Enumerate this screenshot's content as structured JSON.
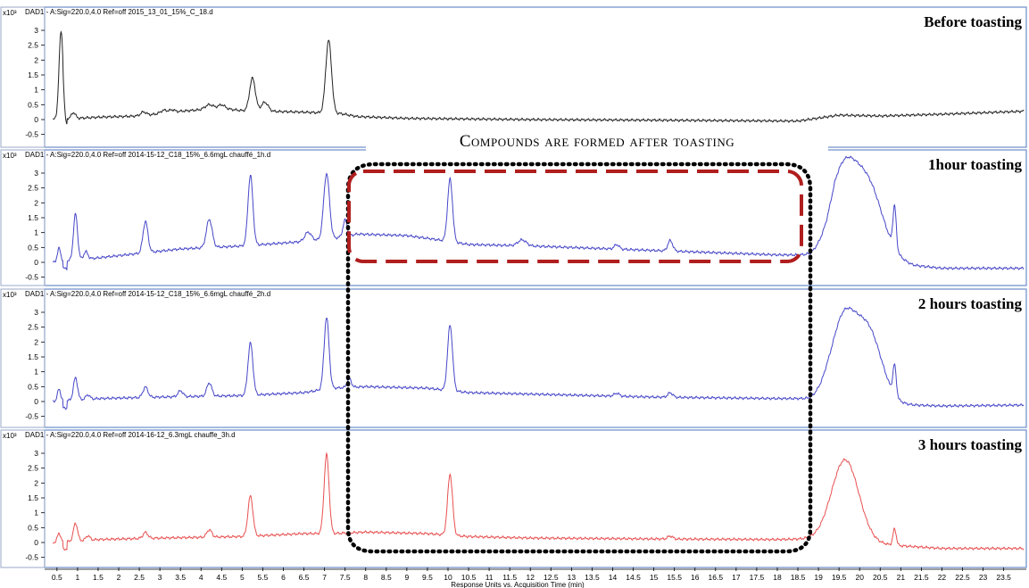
{
  "chart_data": {
    "type": "line",
    "xlabel": "Response Units vs. Acquisition Time (min)",
    "ylabel_unit": "x10³",
    "xlim": [
      0,
      24
    ],
    "ylim": [
      -0.6,
      3.4
    ],
    "xticks": [
      "0.5",
      "1",
      "1.5",
      "2",
      "2.5",
      "3",
      "3.5",
      "4",
      "4.5",
      "5",
      "5.5",
      "6",
      "6.5",
      "7",
      "7.5",
      "8",
      "8.5",
      "9",
      "9.5",
      "10",
      "10.5",
      "11",
      "11.5",
      "12",
      "12.5",
      "13",
      "13.5",
      "14",
      "14.5",
      "15",
      "15.5",
      "16",
      "16.5",
      "17",
      "17.5",
      "18",
      "18.5",
      "19",
      "19.5",
      "20",
      "20.5",
      "21",
      "21.5",
      "22",
      "22.5",
      "23",
      "23.5"
    ],
    "yticks": [
      "3",
      "2.5",
      "2",
      "1.5",
      "1",
      "0.5",
      "0",
      "-0.5"
    ],
    "annotation": "Compounds are formed after toasting",
    "series": [
      {
        "name": "Before toasting",
        "header": "DAD1 - A:Sig=220.0,4.0 Ref=off 2015_13_01_15%_C_18.d",
        "color": "#222222",
        "baseline": [
          [
            0.4,
            0
          ],
          [
            1.5,
            0.08
          ],
          [
            2.5,
            0.12
          ],
          [
            3.5,
            0.28
          ],
          [
            4.5,
            0.38
          ],
          [
            5,
            0.3
          ],
          [
            5.6,
            0.28
          ],
          [
            6.5,
            0.25
          ],
          [
            7.4,
            0.2
          ],
          [
            7.8,
            0.1
          ],
          [
            9,
            0.04
          ],
          [
            12,
            0.0
          ],
          [
            15,
            -0.02
          ],
          [
            18.5,
            -0.05
          ],
          [
            19,
            0.05
          ],
          [
            19.5,
            0.15
          ],
          [
            20.5,
            0.12
          ],
          [
            22,
            0.18
          ],
          [
            24,
            0.28
          ]
        ],
        "peaks": [
          [
            0.6,
            2.95,
            0.05
          ],
          [
            0.9,
            0.2,
            0.05
          ],
          [
            2.6,
            0.12,
            0.07
          ],
          [
            3.1,
            0.1,
            0.08
          ],
          [
            3.3,
            0.08,
            0.06
          ],
          [
            4.2,
            0.15,
            0.1
          ],
          [
            4.5,
            0.12,
            0.08
          ],
          [
            5.25,
            1.1,
            0.07
          ],
          [
            5.55,
            0.3,
            0.08
          ],
          [
            7.1,
            2.45,
            0.07
          ]
        ]
      },
      {
        "name": "1hour toasting",
        "header": "DAD1 - A:Sig=220.0,4.0 Ref=off 2014-15-12_C18_15%_6.6mgL chauffé_1h.d",
        "color": "#4747c8",
        "baseline": [
          [
            0.4,
            0
          ],
          [
            1.5,
            0.15
          ],
          [
            2.5,
            0.3
          ],
          [
            3.5,
            0.45
          ],
          [
            5,
            0.55
          ],
          [
            6.5,
            0.7
          ],
          [
            7.2,
            0.8
          ],
          [
            7.8,
            0.95
          ],
          [
            9,
            0.9
          ],
          [
            9.8,
            0.75
          ],
          [
            10.5,
            0.6
          ],
          [
            12,
            0.55
          ],
          [
            14,
            0.45
          ],
          [
            16,
            0.35
          ],
          [
            18,
            0.25
          ],
          [
            18.8,
            0.25
          ],
          [
            19.2,
            0.5
          ],
          [
            19.4,
            0.8
          ],
          [
            21.3,
            -0.1
          ],
          [
            22,
            -0.2
          ],
          [
            24,
            -0.2
          ]
        ],
        "peaks": [
          [
            0.55,
            0.45,
            0.04
          ],
          [
            0.95,
            1.55,
            0.05
          ],
          [
            1.2,
            0.25,
            0.05
          ],
          [
            2.65,
            1.05,
            0.06
          ],
          [
            4.2,
            0.95,
            0.07
          ],
          [
            5.2,
            2.35,
            0.06
          ],
          [
            6.6,
            0.3,
            0.08
          ],
          [
            7.05,
            2.2,
            0.07
          ],
          [
            7.5,
            0.55,
            0.05
          ],
          [
            10.05,
            2.1,
            0.06
          ],
          [
            11.8,
            0.2,
            0.1
          ],
          [
            14.1,
            0.15,
            0.06
          ],
          [
            15.4,
            0.35,
            0.06
          ],
          [
            19.6,
            2.2,
            0.3
          ],
          [
            20.2,
            2.2,
            0.35
          ],
          [
            20.85,
            1.4,
            0.04
          ]
        ]
      },
      {
        "name": "2 hours toasting",
        "header": "DAD1 - A:Sig=220.0,4.0 Ref=off 2014-15-12_C18_15%_6.6mgL chauffé_2h.d",
        "color": "#4747c8",
        "baseline": [
          [
            0.4,
            0
          ],
          [
            1.5,
            0.1
          ],
          [
            3,
            0.15
          ],
          [
            5,
            0.2
          ],
          [
            6.5,
            0.3
          ],
          [
            7.2,
            0.45
          ],
          [
            8,
            0.5
          ],
          [
            9.5,
            0.45
          ],
          [
            10.5,
            0.3
          ],
          [
            12,
            0.25
          ],
          [
            15,
            0.15
          ],
          [
            18,
            0.1
          ],
          [
            18.8,
            0.1
          ],
          [
            19.2,
            0.4
          ],
          [
            20.9,
            -0.1
          ],
          [
            22,
            -0.15
          ],
          [
            24,
            -0.12
          ]
        ],
        "peaks": [
          [
            0.55,
            0.4,
            0.04
          ],
          [
            0.95,
            0.75,
            0.05
          ],
          [
            1.25,
            0.15,
            0.05
          ],
          [
            2.65,
            0.35,
            0.06
          ],
          [
            3.5,
            0.2,
            0.06
          ],
          [
            4.2,
            0.45,
            0.06
          ],
          [
            5.2,
            1.75,
            0.06
          ],
          [
            7.05,
            2.4,
            0.06
          ],
          [
            7.6,
            0.3,
            0.05
          ],
          [
            10.05,
            2.2,
            0.06
          ],
          [
            14.1,
            0.1,
            0.06
          ],
          [
            15.4,
            0.15,
            0.06
          ],
          [
            19.6,
            2.3,
            0.28
          ],
          [
            20.2,
            2.3,
            0.33
          ],
          [
            20.85,
            1.0,
            0.04
          ]
        ]
      },
      {
        "name": "3 hours toasting",
        "header": "DAD1 - A:Sig=220.0,4.0 Ref=off 2014-16-12_6.3mgL chauffe_3h.d",
        "color": "#e85050",
        "baseline": [
          [
            0.4,
            0
          ],
          [
            1.5,
            0.1
          ],
          [
            3,
            0.15
          ],
          [
            5,
            0.2
          ],
          [
            6.5,
            0.3
          ],
          [
            7.2,
            0.3
          ],
          [
            8,
            0.35
          ],
          [
            9.5,
            0.3
          ],
          [
            10.5,
            0.2
          ],
          [
            12,
            0.15
          ],
          [
            15,
            0.12
          ],
          [
            18,
            0.1
          ],
          [
            18.8,
            0.12
          ],
          [
            20.9,
            -0.1
          ],
          [
            22,
            -0.2
          ],
          [
            24,
            -0.2
          ]
        ],
        "peaks": [
          [
            0.55,
            0.3,
            0.04
          ],
          [
            0.95,
            0.6,
            0.05
          ],
          [
            1.25,
            0.15,
            0.05
          ],
          [
            2.65,
            0.2,
            0.06
          ],
          [
            4.2,
            0.25,
            0.06
          ],
          [
            5.2,
            1.35,
            0.06
          ],
          [
            7.05,
            2.65,
            0.06
          ],
          [
            10.05,
            2.05,
            0.06
          ],
          [
            15.4,
            0.1,
            0.06
          ],
          [
            19.65,
            2.75,
            0.33
          ],
          [
            20.85,
            0.55,
            0.04
          ]
        ]
      }
    ]
  }
}
